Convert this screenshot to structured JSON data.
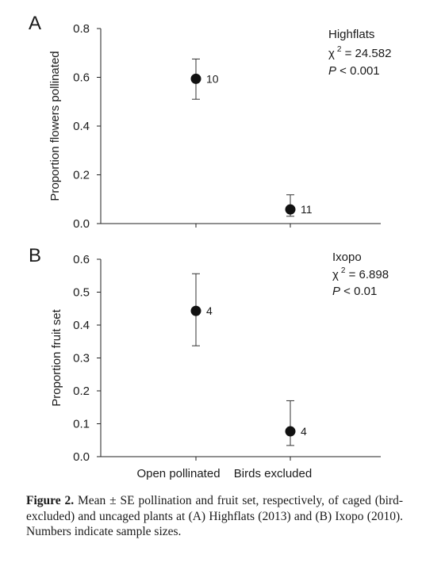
{
  "chart_data": [
    {
      "type": "scatter",
      "panel": "A",
      "ylabel": "Proportion flowers pollinated",
      "ylim": [
        0,
        0.8
      ],
      "yticks": [
        "0.0",
        "0.2",
        "0.4",
        "0.6",
        "0.8"
      ],
      "categories": [
        "Open pollinated",
        "Birds excluded"
      ],
      "values": [
        0.594,
        0.058
      ],
      "error_low": [
        0.51,
        0.03
      ],
      "error_high": [
        0.675,
        0.118
      ],
      "n_labels": [
        "10",
        "11"
      ],
      "annotation": {
        "site": "Highflats",
        "chi_label": "χ",
        "chi_value": "= 24.582",
        "p_label": "P",
        "p_value": "< 0.001"
      }
    },
    {
      "type": "scatter",
      "panel": "B",
      "ylabel": "Proportion fruit set",
      "ylim": [
        0,
        0.6
      ],
      "yticks": [
        "0.0",
        "0.1",
        "0.2",
        "0.3",
        "0.4",
        "0.5",
        "0.6"
      ],
      "categories": [
        "Open pollinated",
        "Birds excluded"
      ],
      "values": [
        0.443,
        0.077
      ],
      "error_low": [
        0.337,
        0.034
      ],
      "error_high": [
        0.556,
        0.17
      ],
      "n_labels": [
        "4",
        "4"
      ],
      "annotation": {
        "site": "Ixopo",
        "chi_label": "χ",
        "chi_value": "= 6.898",
        "p_label": "P",
        "p_value": "< 0.01"
      }
    }
  ],
  "caption": {
    "label": "Figure 2.",
    "text": " Mean ± SE pollination and fruit set, respectively, of caged (bird-excluded) and uncaged plants at (A) Highflats (2013) and (B) Ixopo (2010). Numbers indicate sample sizes."
  }
}
